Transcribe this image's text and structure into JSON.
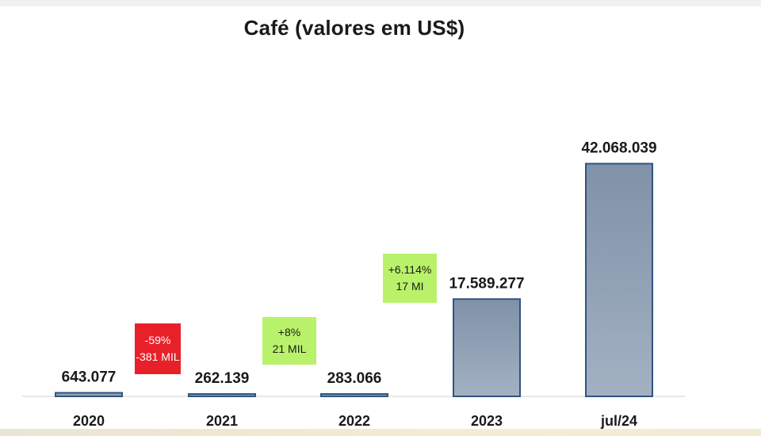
{
  "chart_data": {
    "type": "bar",
    "title": "Café (valores em US$)",
    "categories": [
      "2020",
      "2021",
      "2022",
      "2023",
      "jul/24"
    ],
    "values": [
      643077,
      262139,
      283066,
      17589277,
      42068039
    ],
    "value_labels": [
      "643.077",
      "262.139",
      "283.066",
      "17.589.277",
      "42.068.039"
    ],
    "ylim": [
      0,
      45000000
    ],
    "xlabel": "",
    "ylabel": "",
    "grid": false,
    "legend": "none",
    "bar_color": "#8a9bb0",
    "bar_edge_color": "#2f5580",
    "annotations": [
      {
        "line1": "-59%",
        "line2": "-381 MIL",
        "color": "#e8202a"
      },
      {
        "line1": "+8%",
        "line2": "21 MIL",
        "color": "#b9f26a"
      },
      {
        "line1": "+6.114%",
        "line2": "17 MI",
        "color": "#b9f26a"
      }
    ]
  }
}
